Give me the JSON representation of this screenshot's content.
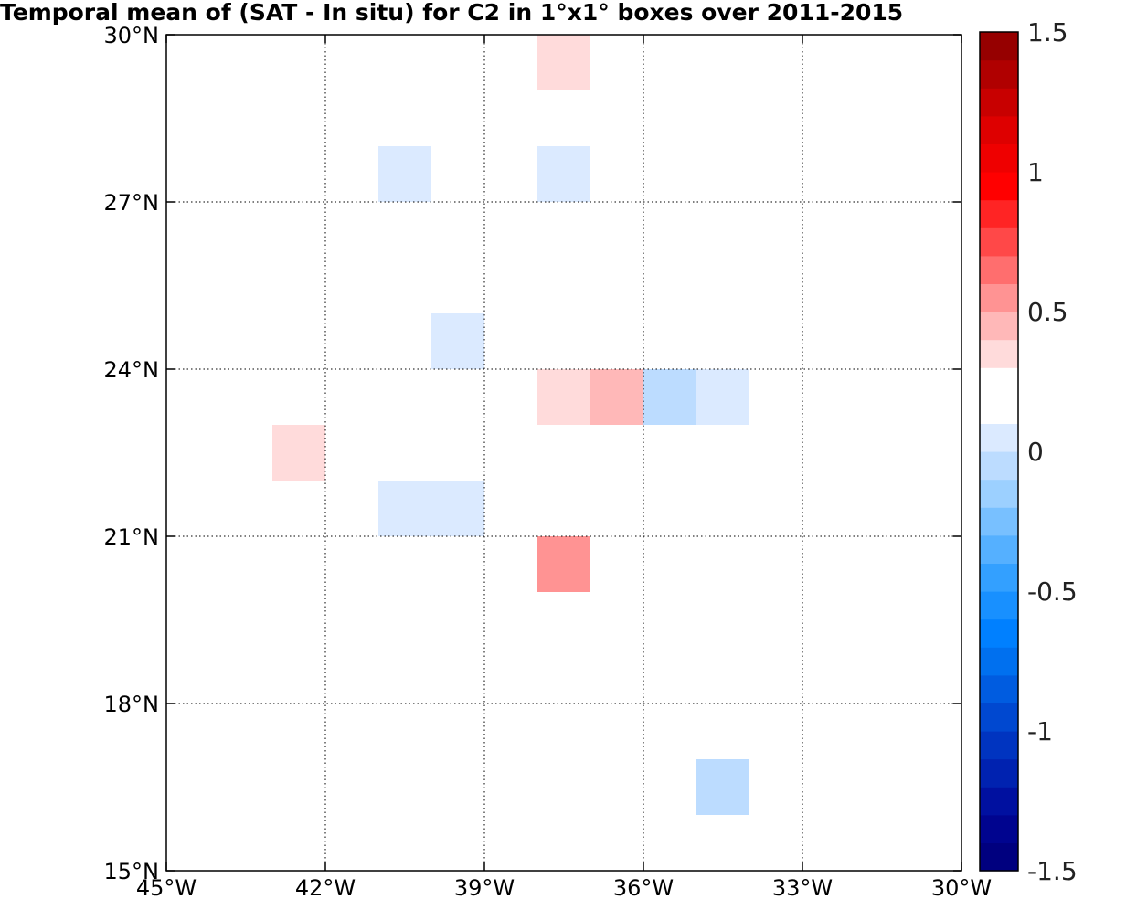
{
  "title": "Temporal mean of (SAT - In situ) for C2 in 1°x1° boxes over 2011-2015",
  "chart_data": {
    "type": "heatmap",
    "title": "Temporal mean of (SAT - In situ) for C2 in 1°x1° boxes over 2011-2015",
    "xlim": [
      -45,
      -30
    ],
    "ylim": [
      15,
      30
    ],
    "x_ticks": [
      -45,
      -42,
      -39,
      -36,
      -33,
      -30
    ],
    "y_ticks": [
      15,
      18,
      21,
      24,
      27,
      30
    ],
    "x_tick_labels": [
      "45°W",
      "42°W",
      "39°W",
      "36°W",
      "33°W",
      "30°W"
    ],
    "y_tick_labels": [
      "15°N",
      "18°N",
      "21°N",
      "24°N",
      "27°N",
      "30°N"
    ],
    "grid": true,
    "colorbar": {
      "range": [
        -1.5,
        1.5
      ],
      "levels": 30,
      "ticks": [
        1.5,
        1,
        0.5,
        0,
        -0.5,
        -1,
        -1.5
      ],
      "tick_labels": [
        "1.5",
        "1",
        "0.5",
        "0",
        "-0.5",
        "-1",
        "-1.5"
      ],
      "colors": [
        "#00007f",
        "#00048f",
        "#0010a0",
        "#0022b0",
        "#0034c0",
        "#0048d0",
        "#005ce0",
        "#0070ef",
        "#0080ff",
        "#1890ff",
        "#33a0ff",
        "#55b0ff",
        "#78c0ff",
        "#9cd0ff",
        "#bcdcff",
        "#dbeaff",
        "#ffffff",
        "#ffffff",
        "#ffdbdb",
        "#ffb8b8",
        "#ff9393",
        "#ff6e6e",
        "#ff4848",
        "#ff2424",
        "#ff0000",
        "#ef0000",
        "#de0000",
        "#c80000",
        "#b00000",
        "#960000"
      ]
    },
    "cells": [
      {
        "lon": -38,
        "lat": 29,
        "value": 0.1,
        "color": "#ffdbdb"
      },
      {
        "lon": -41,
        "lat": 27,
        "value": -0.1,
        "color": "#dbeaff"
      },
      {
        "lon": -38,
        "lat": 27,
        "value": -0.1,
        "color": "#dbeaff"
      },
      {
        "lon": -40,
        "lat": 24,
        "value": -0.1,
        "color": "#dbeaff"
      },
      {
        "lon": -38,
        "lat": 23,
        "value": 0.1,
        "color": "#ffdbdb"
      },
      {
        "lon": -37,
        "lat": 23,
        "value": 0.3,
        "color": "#ffb8b8"
      },
      {
        "lon": -36,
        "lat": 23,
        "value": -0.2,
        "color": "#bcdcff"
      },
      {
        "lon": -35,
        "lat": 23,
        "value": -0.1,
        "color": "#dbeaff"
      },
      {
        "lon": -43,
        "lat": 22,
        "value": 0.1,
        "color": "#ffdbdb"
      },
      {
        "lon": -41,
        "lat": 21,
        "value": -0.1,
        "color": "#dbeaff"
      },
      {
        "lon": -40,
        "lat": 21,
        "value": -0.1,
        "color": "#dbeaff"
      },
      {
        "lon": -38,
        "lat": 20,
        "value": 0.4,
        "color": "#ff9393"
      },
      {
        "lon": -35,
        "lat": 16,
        "value": -0.2,
        "color": "#bcdcff"
      }
    ]
  }
}
